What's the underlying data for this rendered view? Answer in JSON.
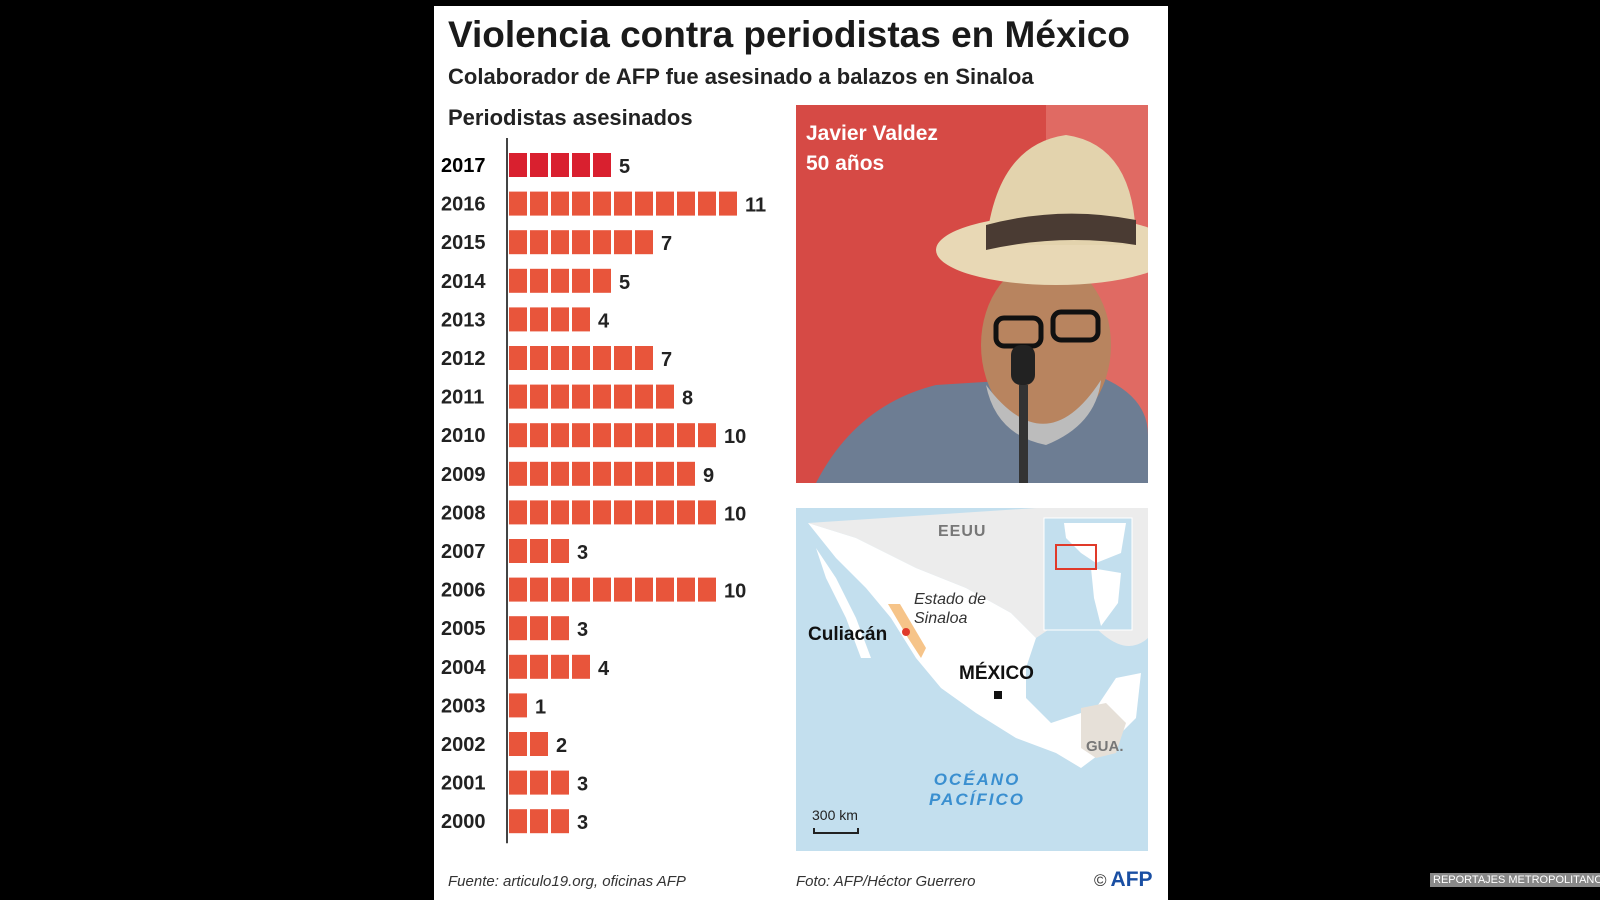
{
  "title": "Violencia contra periodistas en México",
  "subtitle": "Colaborador de AFP fue asesinado a balazos en Sinaloa",
  "photo": {
    "name": "Javier Valdez",
    "age": "50 años"
  },
  "map": {
    "country_us": "EEUU",
    "state_label": "Estado de Sinaloa",
    "city": "Culiacán",
    "country": "MÉXICO",
    "neighbor": "GUA.",
    "ocean": "OCÉANO PACÍFICO",
    "scale": "300 km"
  },
  "footer": {
    "source": "Fuente: articulo19.org, oficinas AFP",
    "photo_credit": "Foto: AFP/Héctor Guerrero",
    "copyright": "©",
    "agency": "AFP"
  },
  "watermark": "REPORTAJES METROPOLITANOS",
  "colors": {
    "bar": "#e8553b",
    "bar_highlight": "#d9202f",
    "photo_bg": "#d64a45",
    "sea": "#c3dfee",
    "land": "#ffffff",
    "sinaloa": "#f6c489"
  },
  "chart_data": {
    "type": "bar",
    "orientation": "horizontal",
    "title": "Periodistas asesinados",
    "categories": [
      "2017",
      "2016",
      "2015",
      "2014",
      "2013",
      "2012",
      "2011",
      "2010",
      "2009",
      "2008",
      "2007",
      "2006",
      "2005",
      "2004",
      "2003",
      "2002",
      "2001",
      "2000"
    ],
    "values": [
      5,
      11,
      7,
      5,
      4,
      7,
      8,
      10,
      9,
      10,
      3,
      10,
      3,
      4,
      1,
      2,
      3,
      3
    ],
    "highlight": "2017",
    "grid": false
  }
}
